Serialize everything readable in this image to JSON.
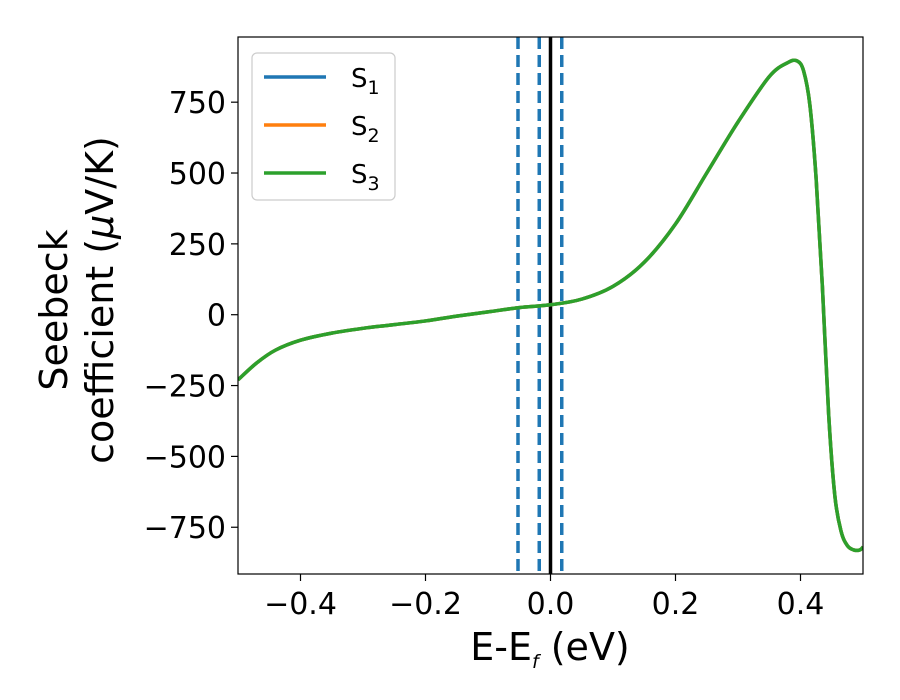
{
  "chart_data": {
    "type": "line",
    "xlabel": {
      "main": "E-E",
      "subscript": "f",
      "suffix": " (eV)"
    },
    "ylabel": {
      "line1": "Seebeck",
      "line2_prefix": "coefficient  (",
      "mu": "μ",
      "line2_suffix": "V/K)"
    },
    "xlim": [
      -0.5,
      0.5
    ],
    "ylim": [
      -915,
      980
    ],
    "xticks": [
      -0.4,
      -0.2,
      0.0,
      0.2,
      0.4
    ],
    "xtick_labels": [
      "−0.4",
      "−0.2",
      "0.0",
      "0.2",
      "0.4"
    ],
    "yticks": [
      750,
      500,
      250,
      0,
      -250,
      -500,
      -750
    ],
    "ytick_labels": [
      "750",
      "500",
      "250",
      "0",
      "−250",
      "−500",
      "−750"
    ],
    "grid": false,
    "legend": {
      "location": "upper-left",
      "entries": [
        {
          "name": "S",
          "subscript": "1",
          "color": "#1f77b4"
        },
        {
          "name": "S",
          "subscript": "2",
          "color": "#ff7f0e"
        },
        {
          "name": "S",
          "subscript": "3",
          "color": "#2ca02c"
        }
      ]
    },
    "vertical_lines": [
      {
        "x": -0.052,
        "style": "dashed",
        "color": "#1f77b4"
      },
      {
        "x": -0.018,
        "style": "dashed",
        "color": "#1f77b4"
      },
      {
        "x": 0.018,
        "style": "dashed",
        "color": "#1f77b4"
      },
      {
        "x": 0.0,
        "style": "solid",
        "color": "#000000"
      }
    ],
    "series": [
      {
        "name": "S1",
        "color": "#1f77b4",
        "x": [
          -0.5,
          -0.47,
          -0.44,
          -0.4,
          -0.35,
          -0.3,
          -0.25,
          -0.2,
          -0.15,
          -0.1,
          -0.05,
          0.0,
          0.05,
          0.1,
          0.15,
          0.2,
          0.25,
          0.3,
          0.35,
          0.38,
          0.395,
          0.405,
          0.415,
          0.425,
          0.435,
          0.445,
          0.455,
          0.465,
          0.475,
          0.485,
          0.495,
          0.5
        ],
        "y": [
          -230,
          -170,
          -125,
          -90,
          -65,
          -48,
          -35,
          -22,
          -5,
          10,
          25,
          35,
          55,
          100,
          185,
          320,
          500,
          680,
          840,
          890,
          895,
          860,
          740,
          480,
          100,
          -350,
          -640,
          -765,
          -815,
          -830,
          -830,
          -820
        ]
      },
      {
        "name": "S2",
        "color": "#ff7f0e",
        "x": [
          -0.5,
          -0.47,
          -0.44,
          -0.4,
          -0.35,
          -0.3,
          -0.25,
          -0.2,
          -0.15,
          -0.1,
          -0.05,
          0.0,
          0.05,
          0.1,
          0.15,
          0.2,
          0.25,
          0.3,
          0.35,
          0.38,
          0.395,
          0.405,
          0.415,
          0.425,
          0.435,
          0.445,
          0.455,
          0.465,
          0.475,
          0.485,
          0.495,
          0.5
        ],
        "y": [
          -230,
          -170,
          -125,
          -90,
          -65,
          -48,
          -35,
          -22,
          -5,
          10,
          25,
          35,
          55,
          100,
          185,
          320,
          500,
          680,
          840,
          890,
          895,
          860,
          740,
          480,
          100,
          -350,
          -640,
          -765,
          -815,
          -830,
          -830,
          -820
        ]
      },
      {
        "name": "S3",
        "color": "#2ca02c",
        "x": [
          -0.5,
          -0.47,
          -0.44,
          -0.4,
          -0.35,
          -0.3,
          -0.25,
          -0.2,
          -0.15,
          -0.1,
          -0.05,
          0.0,
          0.05,
          0.1,
          0.15,
          0.2,
          0.25,
          0.3,
          0.35,
          0.38,
          0.395,
          0.405,
          0.415,
          0.425,
          0.435,
          0.445,
          0.455,
          0.465,
          0.475,
          0.485,
          0.495,
          0.5
        ],
        "y": [
          -230,
          -170,
          -125,
          -90,
          -65,
          -48,
          -35,
          -22,
          -5,
          10,
          25,
          35,
          55,
          100,
          185,
          320,
          500,
          680,
          840,
          890,
          895,
          860,
          740,
          480,
          100,
          -350,
          -640,
          -765,
          -815,
          -830,
          -830,
          -820
        ]
      }
    ]
  }
}
